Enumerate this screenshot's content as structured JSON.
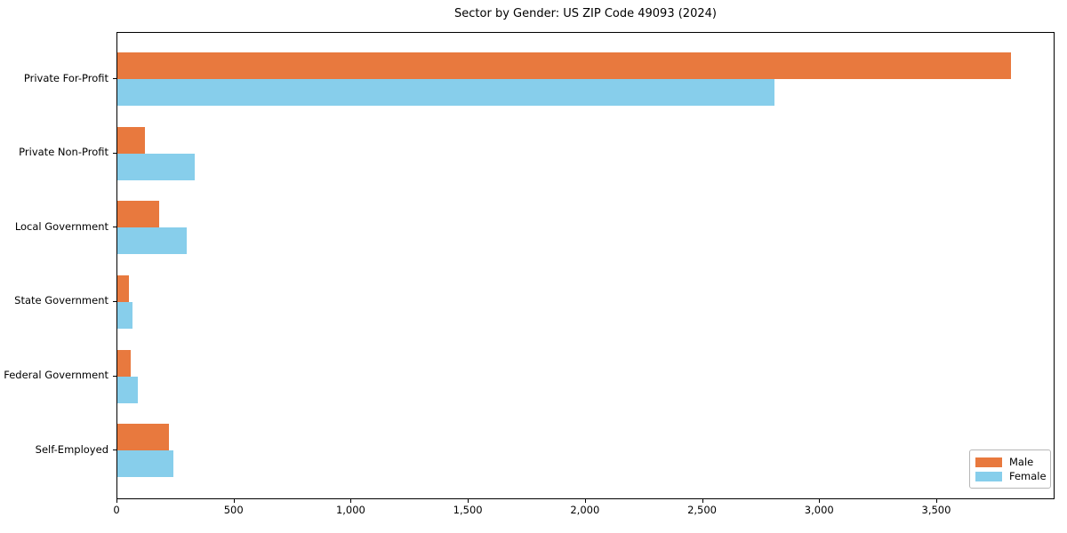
{
  "chart_data": {
    "type": "bar",
    "orientation": "horizontal",
    "title": "Sector by Gender: US ZIP Code 49093 (2024)",
    "categories": [
      "Private For-Profit",
      "Private Non-Profit",
      "Local Government",
      "State Government",
      "Federal Government",
      "Self-Employed"
    ],
    "series": [
      {
        "name": "Male",
        "color": "#e8793e",
        "values": [
          3815,
          118,
          180,
          48,
          57,
          220
        ]
      },
      {
        "name": "Female",
        "color": "#87ceeb",
        "values": [
          2805,
          330,
          295,
          63,
          86,
          240
        ]
      }
    ],
    "xlabel": "",
    "ylabel": "",
    "xlim": [
      0,
      4005
    ],
    "xticks": {
      "values": [
        0,
        500,
        1000,
        1500,
        2000,
        2500,
        3000,
        3500
      ],
      "labels": [
        "0",
        "500",
        "1,000",
        "1,500",
        "2,000",
        "2,500",
        "3,000",
        "3,500"
      ]
    },
    "legend": {
      "position": "lower right",
      "entries": [
        "Male",
        "Female"
      ]
    },
    "grid": false
  }
}
